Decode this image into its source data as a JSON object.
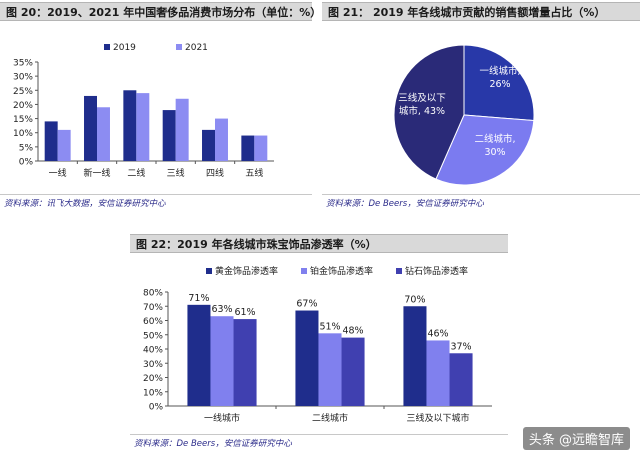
{
  "fig20": {
    "title": "图 20：2019、2021 年中国奢侈品消费市场分布（单位：%）",
    "source": "资料来源：讯飞大数据，安信证券研究中心"
  },
  "fig21": {
    "title": "图 21：    2019 年各线城市贡献的销售额增量占比（%）",
    "source": "资料来源：De Beers，安信证券研究中心"
  },
  "fig22": {
    "title": "图 22：2019 年各线城市珠宝饰品渗透率（%）",
    "source": "资料来源：De Beers，安信证券研究中心"
  },
  "watermark": "头条 @远瞻智库",
  "chart_data": [
    {
      "type": "bar",
      "categories": [
        "一线",
        "新一线",
        "二线",
        "三线",
        "四线",
        "五线"
      ],
      "series": [
        {
          "name": "2019",
          "values": [
            14,
            23,
            25,
            18,
            11,
            9
          ],
          "color": "#1f2d8c"
        },
        {
          "name": "2021",
          "values": [
            11,
            19,
            24,
            22,
            15,
            9
          ],
          "color": "#8c8cf2"
        }
      ],
      "yticks": [
        "0%",
        "5%",
        "10%",
        "15%",
        "20%",
        "25%",
        "30%",
        "35%"
      ],
      "ylim": [
        0,
        35
      ],
      "legend": "top",
      "grid": false
    },
    {
      "type": "pie",
      "slices": [
        {
          "label": "一线城市,",
          "value_label": "26%",
          "value": 26,
          "color": "#2838a8"
        },
        {
          "label": "二线城市,",
          "value_label": "30%",
          "value": 30,
          "color": "#7b7bf0"
        },
        {
          "label": "三线及以下\n城市, 43%",
          "value_label": "",
          "value": 43,
          "color": "#2a2a78"
        }
      ]
    },
    {
      "type": "bar",
      "categories": [
        "一线城市",
        "二线城市",
        "三线及以下城市"
      ],
      "series": [
        {
          "name": "黄金饰品渗透率",
          "values": [
            71,
            67,
            70
          ],
          "labels": [
            "71%",
            "67%",
            "70%"
          ],
          "color": "#1f2d8c"
        },
        {
          "name": "铂金饰品渗透率",
          "values": [
            63,
            51,
            46
          ],
          "labels": [
            "63%",
            "51%",
            "46%"
          ],
          "color": "#8080ee"
        },
        {
          "name": "钻石饰品渗透率",
          "values": [
            61,
            48,
            37
          ],
          "labels": [
            "61%",
            "48%",
            "37%"
          ],
          "color": "#4040b0"
        }
      ],
      "yticks": [
        "0%",
        "10%",
        "20%",
        "30%",
        "40%",
        "50%",
        "60%",
        "70%",
        "80%"
      ],
      "ylim": [
        0,
        80
      ],
      "legend": "top",
      "grid": false
    }
  ]
}
